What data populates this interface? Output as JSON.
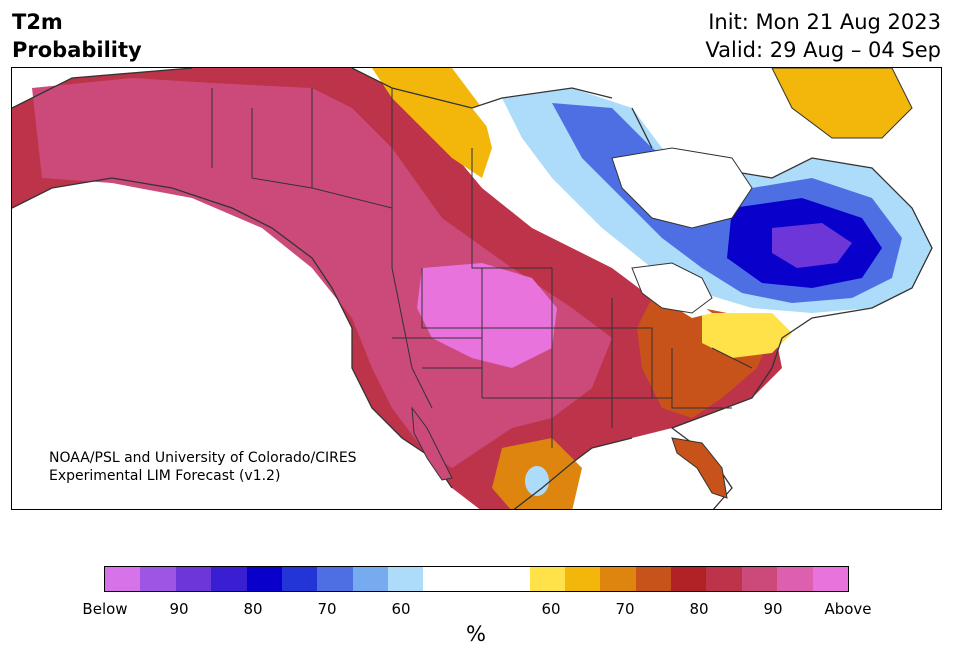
{
  "header": {
    "title_line1": "T2m",
    "title_line2": "Probability",
    "init": "Init: Mon 21 Aug 2023",
    "valid": "Valid: 29 Aug – 04 Sep"
  },
  "credit": {
    "line1": "NOAA/PSL and University of Colorado/CIRES",
    "line2": "Experimental LIM Forecast (v1.2)"
  },
  "colorbar": {
    "unit": "%",
    "below_colors": [
      "#d773e8",
      "#9f55e4",
      "#6c36d8",
      "#3a1ed2",
      "#0a00cc",
      "#2335d7",
      "#4e6fe3",
      "#76acef",
      "#acdcf9"
    ],
    "neutral_color": "#ffffff",
    "above_colors": [
      "#ffe14a",
      "#f3b60a",
      "#de8510",
      "#c8531a",
      "#b02224",
      "#bd3349",
      "#cc4a7a",
      "#dd5fb0",
      "#e873dc"
    ],
    "tick_labels": [
      "Below",
      "90",
      "80",
      "70",
      "60",
      "60",
      "70",
      "80",
      "90",
      "Above"
    ]
  },
  "map": {
    "land_color": "#ffffff",
    "border_color": "#333333"
  }
}
